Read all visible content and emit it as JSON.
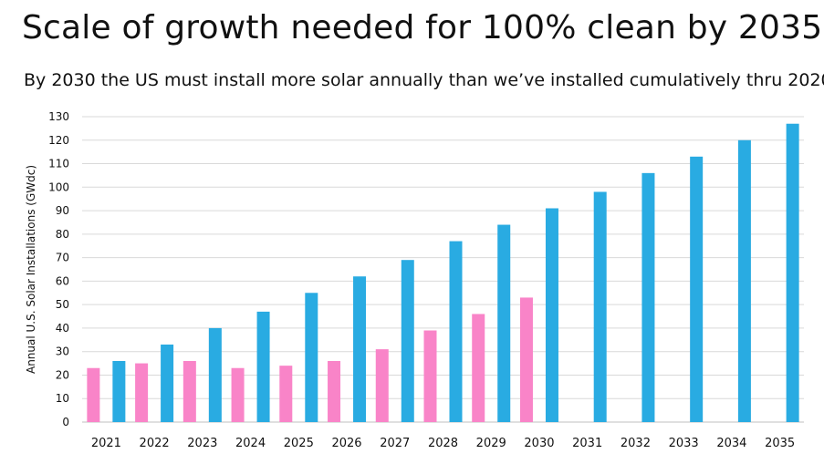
{
  "header": {
    "title": "Scale of growth needed for 100% clean by 2035",
    "subtitle": "By 2030 the US must install more solar annually than we’ve installed cumulatively thru 2020"
  },
  "chart_data": {
    "type": "bar",
    "title": "Scale of growth needed for 100% clean by 2035",
    "subtitle": "By 2030 the US must install more solar annually than we’ve installed cumulatively thru 2020",
    "xlabel": "",
    "ylabel": "Annual U.S. Solar Installations (GWdc)",
    "ylim": [
      0,
      130
    ],
    "yticks": [
      0,
      10,
      20,
      30,
      40,
      50,
      60,
      70,
      80,
      90,
      100,
      110,
      120,
      130
    ],
    "grid": true,
    "legend": "none",
    "categories": [
      "2021",
      "2022",
      "2023",
      "2024",
      "2025",
      "2026",
      "2027",
      "2028",
      "2029",
      "2030",
      "2031",
      "2032",
      "2033",
      "2034",
      "2035"
    ],
    "series": [
      {
        "color": "#f984c8",
        "values": [
          23,
          25,
          26,
          23,
          24,
          26,
          31,
          39,
          46,
          53,
          null,
          null,
          null,
          null,
          null
        ]
      },
      {
        "color": "#29abe2",
        "values": [
          26,
          33,
          40,
          47,
          55,
          62,
          69,
          77,
          84,
          91,
          98,
          106,
          113,
          120,
          127
        ]
      }
    ]
  }
}
